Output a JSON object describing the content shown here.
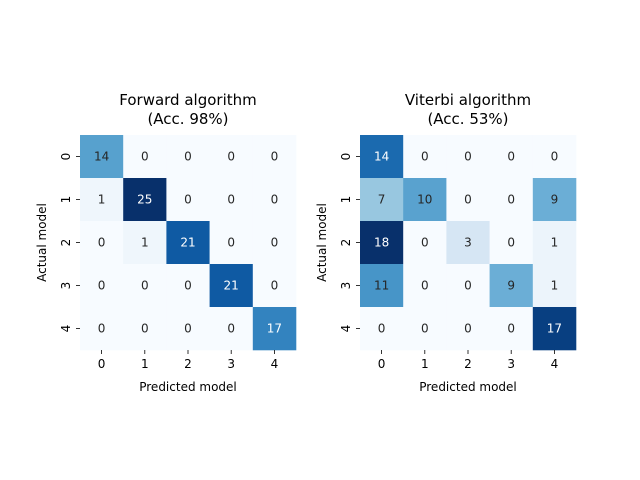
{
  "chart_data": [
    {
      "type": "heatmap",
      "title": "Forward algorithm\n(Acc. 98%)",
      "xlabel": "Predicted model",
      "ylabel": "Actual model",
      "x_categories": [
        "0",
        "1",
        "2",
        "3",
        "4"
      ],
      "y_categories": [
        "0",
        "1",
        "2",
        "3",
        "4"
      ],
      "values": [
        [
          14,
          0,
          0,
          0,
          0
        ],
        [
          1,
          25,
          0,
          0,
          0
        ],
        [
          0,
          1,
          21,
          0,
          0
        ],
        [
          0,
          0,
          0,
          21,
          0
        ],
        [
          0,
          0,
          0,
          0,
          17
        ]
      ],
      "colormap": "Blues",
      "colorbar": false
    },
    {
      "type": "heatmap",
      "title": "Viterbi algorithm\n(Acc. 53%)",
      "xlabel": "Predicted model",
      "ylabel": "Actual model",
      "x_categories": [
        "0",
        "1",
        "2",
        "3",
        "4"
      ],
      "y_categories": [
        "0",
        "1",
        "2",
        "3",
        "4"
      ],
      "values": [
        [
          14,
          0,
          0,
          0,
          0
        ],
        [
          7,
          10,
          0,
          0,
          9
        ],
        [
          18,
          0,
          3,
          0,
          1
        ],
        [
          11,
          0,
          0,
          9,
          1
        ],
        [
          0,
          0,
          0,
          0,
          17
        ]
      ],
      "colormap": "Blues",
      "colorbar": false
    }
  ]
}
